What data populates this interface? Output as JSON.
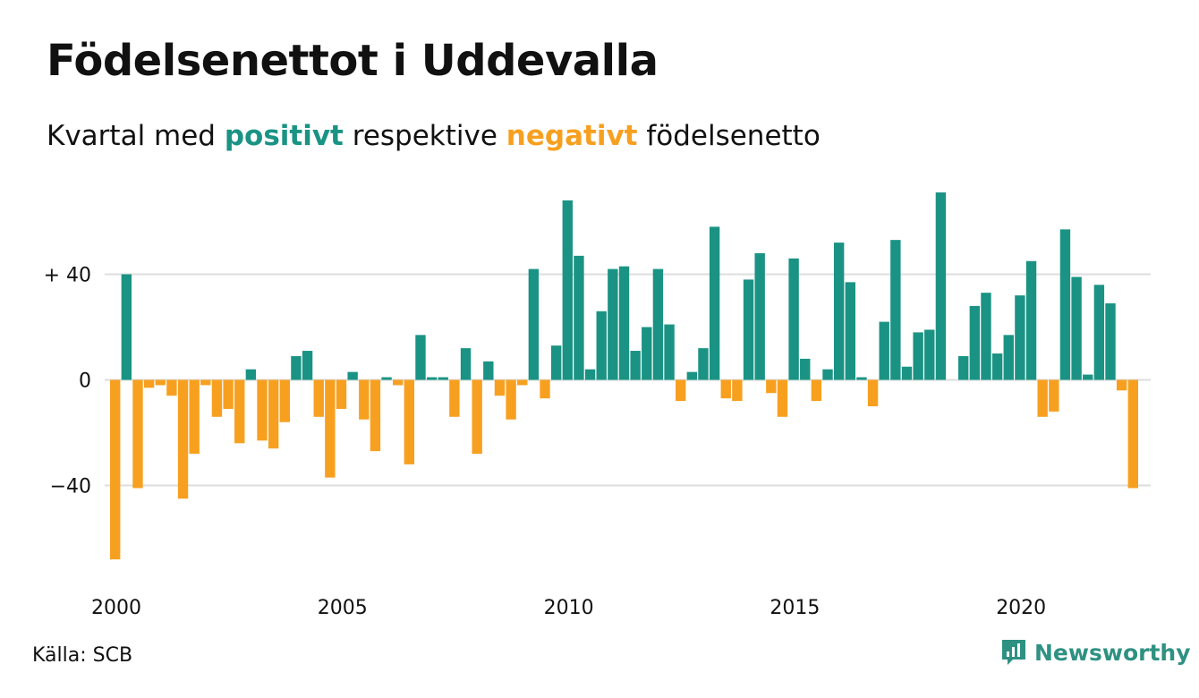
{
  "header": {
    "title": "Födelsenettot i Uddevalla",
    "subtitle_pre": "Kvartal med",
    "subtitle_pos": "positivt",
    "subtitle_mid": "respektive",
    "subtitle_neg": "negativt",
    "subtitle_post": "födelsenetto"
  },
  "footer": {
    "source": "Källa: SCB",
    "brand": "Newsworthy"
  },
  "colors": {
    "positive": "#1a9384",
    "negative": "#f7a020",
    "grid": "#dddddd",
    "brand": "#2e9182"
  },
  "chart_data": {
    "type": "bar",
    "x_start_year": 2000,
    "periods_per_year": 4,
    "xticks": [
      "2000",
      "2005",
      "2010",
      "2015",
      "2020"
    ],
    "yticks": [
      {
        "value": 40,
        "label": "+ 40"
      },
      {
        "value": 0,
        "label": "0"
      },
      {
        "value": -40,
        "label": "−40"
      }
    ],
    "ylim": [
      -75,
      72
    ],
    "grid": true,
    "values": [
      -68,
      40,
      -41,
      -3,
      -2,
      -6,
      -45,
      -28,
      -2,
      -14,
      -11,
      -24,
      4,
      -23,
      -26,
      -16,
      9,
      11,
      -14,
      -37,
      -11,
      3,
      -15,
      -27,
      1,
      -2,
      -32,
      17,
      1,
      1,
      -14,
      12,
      -28,
      7,
      -6,
      -15,
      -2,
      42,
      -7,
      13,
      68,
      47,
      4,
      26,
      42,
      43,
      11,
      20,
      42,
      21,
      -8,
      3,
      12,
      58,
      -7,
      -8,
      38,
      48,
      -5,
      -14,
      46,
      8,
      -8,
      4,
      52,
      37,
      1,
      -10,
      22,
      53,
      5,
      18,
      19,
      71,
      0,
      9,
      28,
      33,
      10,
      17,
      32,
      45,
      -14,
      -12,
      57,
      39,
      2,
      36,
      29,
      -4,
      -41
    ]
  }
}
